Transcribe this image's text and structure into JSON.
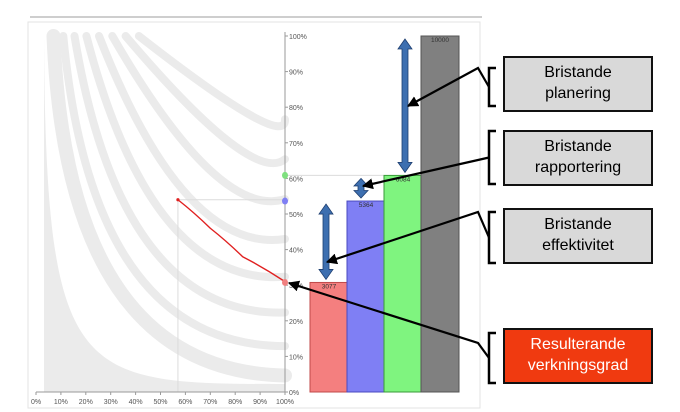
{
  "chart_data": {
    "type": "bar",
    "y_ticks": [
      "0%",
      "10%",
      "20%",
      "30%",
      "40%",
      "50%",
      "60%",
      "70%",
      "80%",
      "90%",
      "100%"
    ],
    "x_ticks": [
      "0%",
      "10%",
      "20%",
      "30%",
      "40%",
      "50%",
      "60%",
      "70%",
      "80%",
      "90%",
      "100%"
    ],
    "ylim": [
      0,
      100
    ],
    "xlim": [
      0,
      100
    ],
    "grid": false,
    "bars": [
      {
        "value_label": "3077",
        "percent": 30.77,
        "color": "#f47f7f",
        "stroke": "#c04a4a"
      },
      {
        "value_label": "5364",
        "percent": 53.64,
        "color": "#7f7ff4",
        "stroke": "#4a4ac0"
      },
      {
        "value_label": "6084",
        "percent": 60.84,
        "color": "#7ff47f",
        "stroke": "#3a9a3a"
      },
      {
        "value_label": "10000",
        "percent": 100,
        "color": "#808080",
        "stroke": "#555555"
      }
    ],
    "red_curve_points": [
      [
        57,
        54
      ],
      [
        70,
        46
      ],
      [
        83,
        38
      ],
      [
        100,
        31
      ]
    ],
    "markers": [
      {
        "y": 60.84,
        "color": "#7fe07f"
      },
      {
        "y": 53.64,
        "color": "#7f7ff4"
      },
      {
        "y": 30.77,
        "color": "#f08080"
      }
    ],
    "gap_arrows": [
      {
        "from_percent": 60.84,
        "to_percent": 100
      },
      {
        "from_percent": 53.64,
        "to_percent": 60.84
      },
      {
        "from_percent": 30.77,
        "to_percent": 53.64
      }
    ],
    "colors": {
      "arrow": "#3d6fb0",
      "arrow_stroke": "#1f3f70",
      "curve": "#e02020",
      "band": "#ebebeb"
    }
  },
  "callouts": [
    {
      "lines": [
        "Bristande",
        "planering"
      ],
      "bg": "#d9d9d9",
      "color": "#000000"
    },
    {
      "lines": [
        "Bristande",
        "rapportering"
      ],
      "bg": "#d9d9d9",
      "color": "#000000"
    },
    {
      "lines": [
        "Bristande",
        "effektivitet"
      ],
      "bg": "#d9d9d9",
      "color": "#000000"
    },
    {
      "lines": [
        "Resulterande",
        "verkningsgrad"
      ],
      "bg": "#f03a10",
      "color": "#ffffff"
    }
  ]
}
